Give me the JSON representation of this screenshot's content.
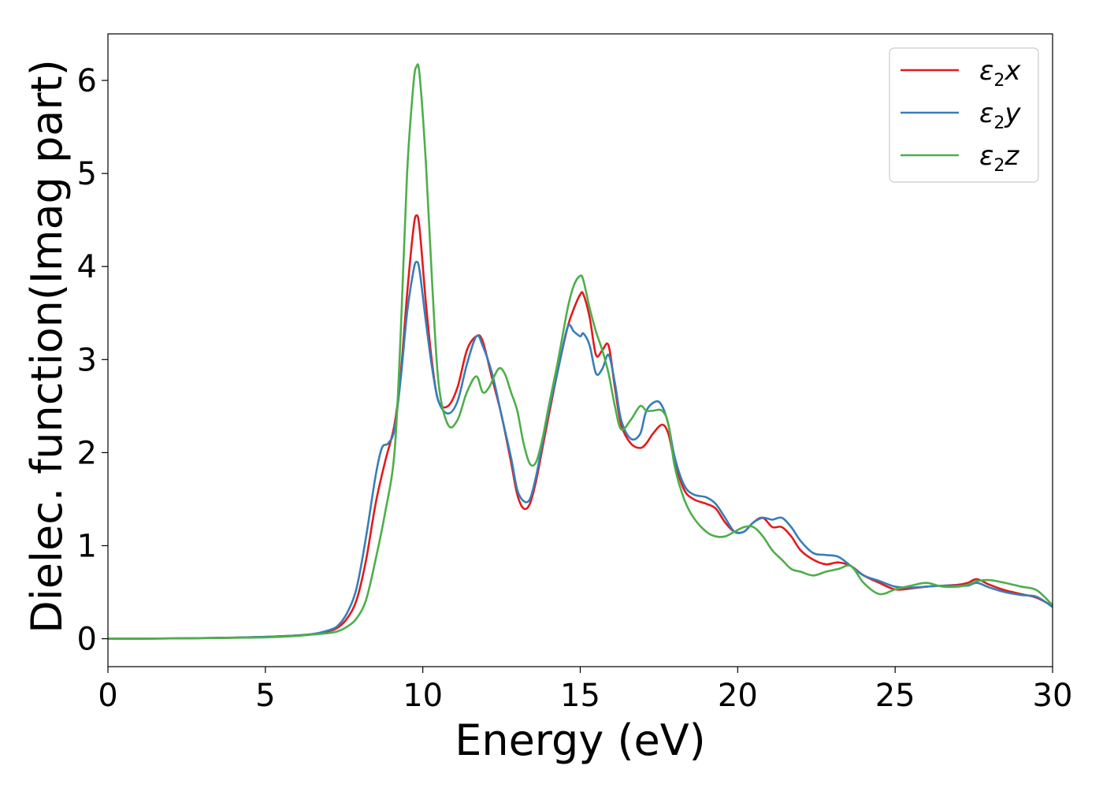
{
  "chart_data": {
    "type": "line",
    "title": "",
    "xlabel": "Energy (eV)",
    "ylabel": "Dielec. function(Imag part)",
    "xlim": [
      0,
      30
    ],
    "ylim": [
      -0.3,
      6.5
    ],
    "xticks": [
      0,
      5,
      10,
      15,
      20,
      25,
      30
    ],
    "yticks": [
      0,
      1,
      2,
      3,
      4,
      5,
      6
    ],
    "grid": false,
    "legend_position": "top-right",
    "series": [
      {
        "name": "ε2x",
        "legend_base": "ε",
        "legend_sub": "2",
        "legend_var": "x",
        "color": "#e41a1c",
        "x": [
          0,
          2,
          4,
          5,
          6,
          6.5,
          7,
          7.3,
          7.6,
          7.9,
          8.2,
          8.5,
          8.8,
          9.1,
          9.3,
          9.5,
          9.7,
          9.8,
          9.9,
          10.1,
          10.3,
          10.5,
          10.8,
          11.1,
          11.4,
          11.7,
          11.9,
          12.2,
          12.5,
          12.8,
          13.0,
          13.2,
          13.4,
          13.6,
          13.8,
          14.0,
          14.3,
          14.6,
          14.8,
          15.0,
          15.1,
          15.3,
          15.5,
          15.7,
          15.9,
          16.1,
          16.3,
          16.6,
          16.9,
          17.1,
          17.3,
          17.6,
          17.8,
          18.0,
          18.3,
          18.6,
          19.0,
          19.3,
          19.6,
          19.9,
          20.2,
          20.5,
          20.8,
          21.1,
          21.4,
          21.7,
          22.0,
          22.4,
          22.8,
          23.2,
          23.6,
          24.0,
          24.5,
          25.0,
          25.5,
          26.0,
          26.5,
          27.0,
          27.3,
          27.6,
          28.0,
          28.5,
          29.0,
          29.5,
          30.0
        ],
        "y": [
          0.0,
          0.003,
          0.012,
          0.02,
          0.035,
          0.05,
          0.08,
          0.12,
          0.22,
          0.42,
          0.85,
          1.45,
          1.9,
          2.3,
          2.85,
          3.7,
          4.4,
          4.55,
          4.4,
          3.6,
          2.95,
          2.55,
          2.5,
          2.7,
          3.1,
          3.25,
          3.2,
          2.8,
          2.4,
          1.9,
          1.55,
          1.4,
          1.45,
          1.7,
          2.05,
          2.4,
          2.9,
          3.35,
          3.55,
          3.7,
          3.7,
          3.45,
          3.05,
          3.1,
          3.15,
          2.7,
          2.3,
          2.1,
          2.05,
          2.1,
          2.2,
          2.3,
          2.2,
          1.9,
          1.6,
          1.5,
          1.45,
          1.4,
          1.25,
          1.15,
          1.15,
          1.25,
          1.3,
          1.2,
          1.2,
          1.1,
          0.95,
          0.85,
          0.8,
          0.82,
          0.78,
          0.68,
          0.6,
          0.53,
          0.54,
          0.56,
          0.57,
          0.58,
          0.6,
          0.64,
          0.58,
          0.52,
          0.48,
          0.44,
          0.35
        ]
      },
      {
        "name": "ε2y",
        "legend_base": "ε",
        "legend_sub": "2",
        "legend_var": "y",
        "color": "#377eb8",
        "x": [
          0,
          2,
          4,
          5,
          6,
          6.5,
          7,
          7.3,
          7.6,
          7.9,
          8.2,
          8.5,
          8.7,
          8.9,
          9.1,
          9.3,
          9.5,
          9.7,
          9.8,
          9.9,
          10.1,
          10.3,
          10.5,
          10.8,
          11.1,
          11.4,
          11.7,
          11.9,
          12.2,
          12.5,
          12.8,
          13.0,
          13.2,
          13.4,
          13.6,
          13.8,
          14.0,
          14.3,
          14.6,
          14.8,
          15.0,
          15.1,
          15.3,
          15.5,
          15.7,
          15.9,
          16.1,
          16.3,
          16.6,
          16.9,
          17.1,
          17.4,
          17.6,
          17.8,
          18.0,
          18.3,
          18.6,
          19.0,
          19.3,
          19.6,
          19.9,
          20.2,
          20.5,
          20.8,
          21.1,
          21.4,
          21.7,
          22.0,
          22.4,
          22.8,
          23.2,
          23.6,
          24.0,
          24.5,
          25.0,
          25.5,
          26.0,
          26.5,
          27.0,
          27.3,
          27.6,
          28.0,
          28.5,
          29.0,
          29.5,
          30.0
        ],
        "y": [
          0.0,
          0.003,
          0.012,
          0.02,
          0.035,
          0.05,
          0.09,
          0.14,
          0.28,
          0.55,
          1.1,
          1.75,
          2.05,
          2.1,
          2.25,
          2.8,
          3.5,
          3.95,
          4.05,
          3.95,
          3.4,
          2.9,
          2.55,
          2.42,
          2.55,
          2.95,
          3.25,
          3.15,
          2.85,
          2.4,
          1.95,
          1.6,
          1.48,
          1.5,
          1.75,
          2.1,
          2.45,
          2.9,
          3.35,
          3.3,
          3.25,
          3.28,
          3.15,
          2.85,
          2.9,
          3.05,
          2.75,
          2.35,
          2.15,
          2.2,
          2.45,
          2.55,
          2.5,
          2.3,
          1.95,
          1.65,
          1.55,
          1.52,
          1.45,
          1.3,
          1.15,
          1.15,
          1.25,
          1.3,
          1.28,
          1.3,
          1.2,
          1.05,
          0.92,
          0.9,
          0.88,
          0.78,
          0.68,
          0.62,
          0.56,
          0.55,
          0.56,
          0.57,
          0.57,
          0.57,
          0.6,
          0.55,
          0.5,
          0.47,
          0.45,
          0.34
        ]
      },
      {
        "name": "ε2z",
        "legend_base": "ε",
        "legend_sub": "2",
        "legend_var": "z",
        "color": "#4daf4a",
        "x": [
          0,
          2,
          4,
          5,
          6,
          6.5,
          7,
          7.3,
          7.6,
          7.9,
          8.2,
          8.5,
          8.8,
          9.1,
          9.3,
          9.5,
          9.7,
          9.8,
          9.9,
          10.1,
          10.3,
          10.5,
          10.8,
          11.1,
          11.4,
          11.7,
          11.9,
          12.1,
          12.4,
          12.6,
          12.8,
          13.0,
          13.2,
          13.4,
          13.6,
          13.8,
          14.0,
          14.3,
          14.6,
          14.8,
          15.0,
          15.1,
          15.3,
          15.5,
          15.7,
          15.9,
          16.1,
          16.3,
          16.6,
          16.9,
          17.1,
          17.3,
          17.6,
          17.8,
          18.0,
          18.3,
          18.6,
          19.0,
          19.3,
          19.6,
          19.9,
          20.2,
          20.5,
          20.8,
          21.1,
          21.4,
          21.7,
          22.0,
          22.4,
          22.8,
          23.2,
          23.6,
          24.0,
          24.5,
          25.0,
          25.5,
          26.0,
          26.5,
          27.0,
          27.3,
          27.6,
          28.0,
          28.5,
          29.0,
          29.5,
          30.0
        ],
        "y": [
          0.0,
          0.003,
          0.01,
          0.015,
          0.03,
          0.045,
          0.06,
          0.08,
          0.13,
          0.22,
          0.42,
          0.85,
          1.35,
          2.0,
          3.3,
          5.0,
          5.95,
          6.15,
          6.05,
          5.1,
          3.8,
          2.75,
          2.3,
          2.35,
          2.65,
          2.82,
          2.65,
          2.7,
          2.9,
          2.85,
          2.65,
          2.45,
          2.1,
          1.88,
          1.9,
          2.15,
          2.5,
          3.0,
          3.55,
          3.8,
          3.9,
          3.85,
          3.55,
          3.3,
          3.1,
          2.85,
          2.5,
          2.25,
          2.35,
          2.5,
          2.45,
          2.45,
          2.45,
          2.3,
          1.85,
          1.5,
          1.3,
          1.15,
          1.1,
          1.1,
          1.15,
          1.2,
          1.2,
          1.1,
          0.95,
          0.85,
          0.75,
          0.72,
          0.68,
          0.72,
          0.75,
          0.78,
          0.6,
          0.48,
          0.53,
          0.57,
          0.6,
          0.56,
          0.56,
          0.58,
          0.62,
          0.63,
          0.6,
          0.56,
          0.52,
          0.36
        ]
      }
    ]
  }
}
